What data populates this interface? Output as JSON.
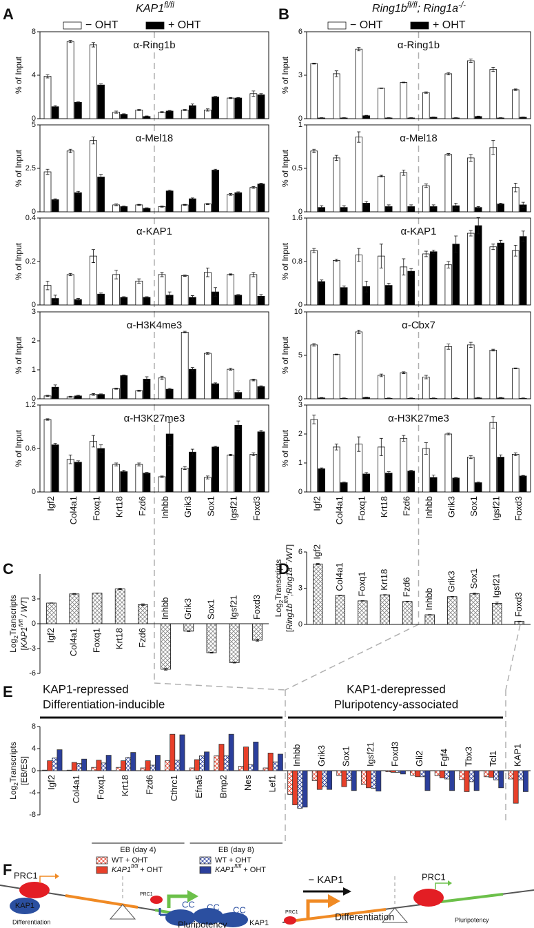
{
  "panels": [
    "A",
    "B",
    "C",
    "D",
    "E",
    "F"
  ],
  "headers": [
    [
      "KAP1",
      {
        "text": "fl/fl",
        "sup": true
      }
    ],
    [
      "Ring1b",
      {
        "text": "fl/fl",
        "sup": true
      },
      "; Ring1a",
      {
        "text": "-/-",
        "sup": true
      }
    ]
  ],
  "chart_data": [
    {
      "type": "bar",
      "title": "α-Ring1b",
      "ylabel": "% of Input",
      "ylim": [
        0,
        8
      ],
      "yticks": [
        0,
        4,
        8
      ],
      "series": [
        {
          "name": "− OHT",
          "color": "#ffffff",
          "values": [
            3.9,
            7.1,
            6.8,
            0.6,
            0.8,
            0.6,
            0.8,
            0.8,
            1.9,
            2.3
          ],
          "errors": [
            0.15,
            0.1,
            0.2,
            0.1,
            0.05,
            0.05,
            0.05,
            0.1,
            0.05,
            0.25
          ]
        },
        {
          "name": "+ OHT",
          "color": "#000000",
          "values": [
            1.1,
            1.5,
            3.1,
            0.4,
            0.2,
            0.7,
            1.2,
            2.0,
            1.9,
            2.2
          ],
          "errors": [
            0.1,
            0.05,
            0.1,
            0.05,
            0.05,
            0.05,
            0.15,
            0.05,
            0.05,
            0.1
          ]
        }
      ]
    },
    {
      "type": "bar",
      "title": "α-Mel18",
      "ylabel": "% of Input",
      "ylim": [
        0,
        5
      ],
      "yticks": [
        0,
        2.5,
        5
      ],
      "series": [
        {
          "color": "#ffffff",
          "values": [
            2.3,
            3.5,
            4.1,
            0.4,
            0.4,
            0.3,
            0.4,
            0.45,
            1.0,
            1.4
          ],
          "errors": [
            0.15,
            0.1,
            0.2,
            0.05,
            0.03,
            0.03,
            0.03,
            0.03,
            0.05,
            0.05
          ]
        },
        {
          "color": "#000000",
          "values": [
            0.7,
            1.1,
            2.0,
            0.3,
            0.2,
            1.2,
            0.75,
            2.4,
            1.1,
            1.6
          ],
          "errors": [
            0.05,
            0.08,
            0.15,
            0.03,
            0.03,
            0.05,
            0.05,
            0.05,
            0.05,
            0.05
          ]
        }
      ]
    },
    {
      "type": "bar",
      "title": "α-KAP1",
      "ylabel": "% of Input",
      "ylim": [
        0,
        0.4
      ],
      "yticks": [
        0,
        0.2,
        0.4
      ],
      "series": [
        {
          "color": "#ffffff",
          "values": [
            0.09,
            0.14,
            0.225,
            0.14,
            0.11,
            0.14,
            0.135,
            0.15,
            0.14,
            0.14
          ],
          "errors": [
            0.02,
            0.005,
            0.03,
            0.02,
            0.01,
            0.01,
            0.003,
            0.02,
            0.003,
            0.01
          ]
        },
        {
          "color": "#000000",
          "values": [
            0.03,
            0.025,
            0.05,
            0.035,
            0.035,
            0.045,
            0.035,
            0.06,
            0.045,
            0.04
          ],
          "errors": [
            0.015,
            0.005,
            0.005,
            0.003,
            0.003,
            0.015,
            0.008,
            0.02,
            0.003,
            0.008
          ]
        }
      ]
    },
    {
      "type": "bar",
      "title": "α-H3K4me3",
      "ylabel": "% of Input",
      "ylim": [
        0,
        3
      ],
      "yticks": [
        0,
        1,
        2,
        3
      ],
      "series": [
        {
          "color": "#ffffff",
          "values": [
            0.1,
            0.07,
            0.15,
            0.35,
            0.28,
            0.72,
            2.3,
            1.57,
            1.02,
            0.65
          ],
          "errors": [
            0.02,
            0.02,
            0.03,
            0.02,
            0.02,
            0.06,
            0.03,
            0.03,
            0.03,
            0.03
          ]
        },
        {
          "color": "#000000",
          "values": [
            0.4,
            0.1,
            0.15,
            0.8,
            0.68,
            0.33,
            1.02,
            0.52,
            0.22,
            0.42
          ],
          "errors": [
            0.08,
            0.02,
            0.02,
            0.02,
            0.08,
            0.03,
            0.06,
            0.03,
            0.05,
            0.03
          ]
        }
      ]
    },
    {
      "type": "bar",
      "title": "α-H3K27me3",
      "ylabel": "% of Input",
      "ylim": [
        0,
        1.2
      ],
      "yticks": [
        0,
        0.6,
        1.2
      ],
      "categories": [
        "Igf2",
        "Col4a1",
        "Foxq1",
        "Krt18",
        "Fzd6",
        "Inhbb",
        "Grik3",
        "Sox1",
        "Igsf21",
        "Foxd3"
      ],
      "series": [
        {
          "color": "#ffffff",
          "values": [
            1.0,
            0.45,
            0.7,
            0.38,
            0.38,
            0.21,
            0.33,
            0.2,
            0.51,
            0.52
          ],
          "errors": [
            0.01,
            0.06,
            0.08,
            0.02,
            0.02,
            0.01,
            0.02,
            0.02,
            0.01,
            0.02
          ]
        },
        {
          "color": "#000000",
          "values": [
            0.65,
            0.41,
            0.6,
            0.28,
            0.26,
            0.8,
            0.55,
            0.62,
            0.92,
            0.83
          ],
          "errors": [
            0.02,
            0.02,
            0.05,
            0.02,
            0.01,
            0.16,
            0.04,
            0.01,
            0.06,
            0.02
          ]
        }
      ]
    },
    {
      "type": "bar",
      "title": "α-Ring1b",
      "ylabel": "% of Input",
      "ylim": [
        0,
        6
      ],
      "yticks": [
        0,
        3,
        6
      ],
      "series": [
        {
          "name": "− OHT",
          "color": "#ffffff",
          "values": [
            3.8,
            3.1,
            4.8,
            2.1,
            2.5,
            1.8,
            3.1,
            4.0,
            3.4,
            2.0
          ],
          "errors": [
            0.03,
            0.2,
            0.12,
            0.02,
            0.02,
            0.05,
            0.08,
            0.12,
            0.15,
            0.05
          ]
        },
        {
          "name": "+ OHT",
          "color": "#000000",
          "values": [
            0.05,
            0.05,
            0.2,
            0.05,
            0.05,
            0.1,
            0.05,
            0.15,
            0.05,
            0.1
          ],
          "errors": [
            0.02,
            0.02,
            0.03,
            0.02,
            0.02,
            0.02,
            0.02,
            0.03,
            0.02,
            0.02
          ]
        }
      ]
    },
    {
      "type": "bar",
      "title": "α-Mel18",
      "ylabel": "% of Input",
      "ylim": [
        0,
        1
      ],
      "yticks": [
        0,
        0.5,
        1
      ],
      "series": [
        {
          "color": "#ffffff",
          "values": [
            0.7,
            0.62,
            0.86,
            0.41,
            0.45,
            0.3,
            0.66,
            0.62,
            0.74,
            0.28
          ],
          "errors": [
            0.02,
            0.03,
            0.06,
            0.01,
            0.03,
            0.02,
            0.01,
            0.04,
            0.08,
            0.05
          ]
        },
        {
          "color": "#000000",
          "values": [
            0.05,
            0.05,
            0.1,
            0.06,
            0.06,
            0.06,
            0.07,
            0.05,
            0.09,
            0.08
          ],
          "errors": [
            0.02,
            0.02,
            0.02,
            0.02,
            0.02,
            0.02,
            0.03,
            0.01,
            0.01,
            0.03
          ]
        }
      ]
    },
    {
      "type": "bar",
      "title": "α-KAP1",
      "ylabel": "% of Input",
      "ylim": [
        0,
        1.6
      ],
      "yticks": [
        0,
        0.8,
        1.6
      ],
      "series": [
        {
          "color": "#ffffff",
          "values": [
            1.0,
            0.82,
            0.92,
            0.9,
            0.7,
            0.94,
            0.74,
            1.32,
            1.07,
            1.0
          ],
          "errors": [
            0.04,
            0.02,
            0.12,
            0.22,
            0.15,
            0.05,
            0.06,
            0.05,
            0.05,
            0.1
          ]
        },
        {
          "color": "#000000",
          "values": [
            0.43,
            0.32,
            0.34,
            0.36,
            0.62,
            0.98,
            1.12,
            1.46,
            1.14,
            1.26
          ],
          "errors": [
            0.03,
            0.03,
            0.1,
            0.04,
            0.05,
            0.03,
            0.15,
            0.15,
            0.05,
            0.1
          ]
        }
      ]
    },
    {
      "type": "bar",
      "title": "α-Cbx7",
      "ylabel": "% of Input",
      "ylim": [
        0,
        10
      ],
      "yticks": [
        0,
        5,
        10
      ],
      "series": [
        {
          "color": "#ffffff",
          "values": [
            6.2,
            5.1,
            7.7,
            2.7,
            3.0,
            2.5,
            6.0,
            6.2,
            5.6,
            3.5
          ],
          "errors": [
            0.15,
            0.05,
            0.2,
            0.15,
            0.1,
            0.2,
            0.3,
            0.3,
            0.1,
            0.05
          ]
        },
        {
          "color": "#000000",
          "values": [
            0.1,
            0.05,
            0.15,
            0.05,
            0.05,
            0.05,
            0.05,
            0.1,
            0.1,
            0.05
          ],
          "errors": [
            0.05,
            0.05,
            0.05,
            0.05,
            0.05,
            0.05,
            0.05,
            0.05,
            0.05,
            0.05
          ]
        }
      ]
    },
    {
      "type": "bar",
      "title": "α-H3K27me3",
      "ylabel": "% of Input",
      "ylim": [
        0,
        3
      ],
      "yticks": [
        0,
        1,
        2,
        3
      ],
      "categories": [
        "Igf2",
        "Col4a1",
        "Foxq1",
        "Krt18",
        "Fzd6",
        "Inhbb",
        "Grik3",
        "Sox1",
        "Igsf21",
        "Foxd3"
      ],
      "series": [
        {
          "color": "#ffffff",
          "values": [
            2.5,
            1.55,
            1.65,
            1.55,
            1.85,
            1.5,
            2.0,
            1.2,
            2.4,
            1.3
          ],
          "errors": [
            0.15,
            0.1,
            0.25,
            0.3,
            0.1,
            0.2,
            0.03,
            0.05,
            0.2,
            0.05
          ]
        },
        {
          "color": "#000000",
          "values": [
            0.8,
            0.32,
            0.62,
            0.65,
            0.72,
            0.5,
            0.48,
            0.32,
            1.2,
            0.55
          ],
          "errors": [
            0.03,
            0.02,
            0.05,
            0.05,
            0.03,
            0.08,
            0.02,
            0.02,
            0.08,
            0.02
          ]
        }
      ]
    },
    {
      "type": "bar",
      "ylabel": [
        [
          "Log",
          {
            "text": "2",
            "sub": true
          },
          "Transcripts"
        ],
        [
          "[",
          {
            "text": "KAP1",
            "italic": true
          },
          {
            "text": "fl/fl",
            "sup": true,
            "italic": true
          },
          {
            "text": " / WT",
            "italic": true
          },
          "]"
        ]
      ],
      "ylim": [
        -6,
        6
      ],
      "yticks": [
        -6,
        -3,
        0,
        3
      ],
      "categories": [
        "Igf2",
        "Col4a1",
        "Foxq1",
        "Krt18",
        "Fzd6",
        "Inhbb",
        "Grik3",
        "Sox1",
        "Igsf21",
        "Foxd3"
      ],
      "series": [
        {
          "color": "#8a8a8a",
          "pattern": "crosshatch",
          "values": [
            2.5,
            3.6,
            3.7,
            4.2,
            2.3,
            -5.5,
            -0.9,
            -3.5,
            -4.7,
            -2.0
          ],
          "errors": [
            0.02,
            0.05,
            0.02,
            0.08,
            0.1,
            0.1,
            0.05,
            0.05,
            0.05,
            0.1
          ]
        }
      ]
    },
    {
      "type": "bar",
      "ylabel": [
        [
          "Log",
          {
            "text": "2",
            "sub": true
          },
          "Transcripts"
        ],
        [
          "[",
          {
            "text": "Ring1b",
            "italic": true
          },
          {
            "text": "fl/fl",
            "sup": true,
            "italic": true
          },
          {
            "text": ";Ring1a",
            "italic": true
          },
          {
            "text": "-/-",
            "sup": true,
            "italic": true
          },
          {
            "text": "/WT",
            "italic": true
          },
          "]"
        ]
      ],
      "ylim": [
        0,
        6
      ],
      "yticks": [
        0,
        3,
        6
      ],
      "categories": [
        "Igf2",
        "Col4a1",
        "Foxq1",
        "Krt18",
        "Fzd6",
        "Inhbb",
        "Grik3",
        "Sox1",
        "Igsf21",
        "Foxd3"
      ],
      "series": [
        {
          "color": "#8a8a8a",
          "pattern": "crosshatch",
          "values": [
            5.0,
            2.4,
            1.95,
            2.45,
            1.9,
            0.8,
            2.3,
            2.55,
            1.75,
            0.25
          ],
          "errors": [
            0.05,
            0.02,
            0.02,
            0.02,
            0.02,
            0.02,
            0.02,
            0.05,
            0.1,
            0.02
          ]
        }
      ]
    },
    {
      "type": "bar",
      "ylabel": [
        [
          "Log",
          {
            "text": "2",
            "sub": true
          },
          "Transcripts"
        ],
        [
          "[EB/ES]"
        ]
      ],
      "ylim": [
        -8,
        8
      ],
      "yticks": [
        -8,
        -4,
        0,
        4,
        8
      ],
      "annotations": [
        "KAP1-repressed",
        "Differentiation-inducible",
        "KAP1-derepressed",
        "Pluripotency-associated"
      ],
      "legend_groups": [
        "EB (day 4)",
        "EB (day 8)"
      ],
      "categories": [
        "Igf2",
        "Col4a1",
        "Foxq1",
        "Krt18",
        "Fzd6",
        "Cthrc1",
        "Efna5",
        "Bmp2",
        "Nes",
        "Lef1",
        "Inhbb",
        "Grik3",
        "Sox1",
        "Igsf21",
        "Foxd3",
        "Gli2",
        "Fgf4",
        "Tbx3",
        "Tcl1",
        "KAP1"
      ],
      "series": [
        {
          "name": "WT + OHT",
          "color": "#e8402a",
          "pattern": "crosshatch",
          "values": [
            0.1,
            0.1,
            0.6,
            0.6,
            0.5,
            1.8,
            0.5,
            2.7,
            0.8,
            0.5,
            -4.3,
            -1.8,
            -0.9,
            -2.5,
            -0.2,
            -0.8,
            -0.9,
            -1.6,
            -1.1,
            -1.5
          ]
        },
        {
          "name": [
            {
              "text": "KAP1",
              "italic": true
            },
            {
              "text": "fl/fl",
              "sup": true,
              "italic": true
            },
            " + OHT"
          ],
          "color": "#e8402a",
          "values": [
            1.8,
            1.5,
            1.9,
            1.8,
            1.8,
            6.6,
            2.0,
            4.8,
            4.3,
            3.2,
            -6.2,
            -3.4,
            -2.9,
            -3.1,
            -0.3,
            -1.1,
            -1.3,
            -3.8,
            -1.2,
            -5.9
          ]
        },
        {
          "name": "WT + OHT",
          "color": "#2b3f9c",
          "pattern": "crosshatch",
          "values": [
            2.3,
            1.3,
            1.4,
            2.4,
            1.0,
            1.9,
            2.7,
            2.7,
            1.1,
            1.6,
            -6.8,
            -2.9,
            -1.8,
            -3.2,
            -0.3,
            -1.1,
            -1.5,
            -2.0,
            -1.7,
            -1.7
          ]
        },
        {
          "name": [
            {
              "text": "KAP1",
              "italic": true
            },
            {
              "text": "fl/fl",
              "sup": true,
              "italic": true
            },
            " + OHT"
          ],
          "color": "#2b3f9c",
          "values": [
            3.8,
            2.1,
            2.8,
            3.3,
            2.8,
            6.5,
            3.4,
            6.6,
            5.2,
            3.0,
            -6.6,
            -3.4,
            -3.6,
            -3.7,
            -0.6,
            -3.6,
            -3.6,
            -3.6,
            -3.1,
            -3.8
          ]
        }
      ]
    }
  ],
  "diagram": {
    "labels": [
      "PRC1",
      "KAP1",
      "Differentiation",
      "PRC1",
      "CC",
      "CC",
      "CC",
      "Pluripotency",
      "KAP1",
      "− KAP1",
      "PRC1",
      "Differentiation",
      "PRC1",
      "Pluripotency"
    ]
  }
}
